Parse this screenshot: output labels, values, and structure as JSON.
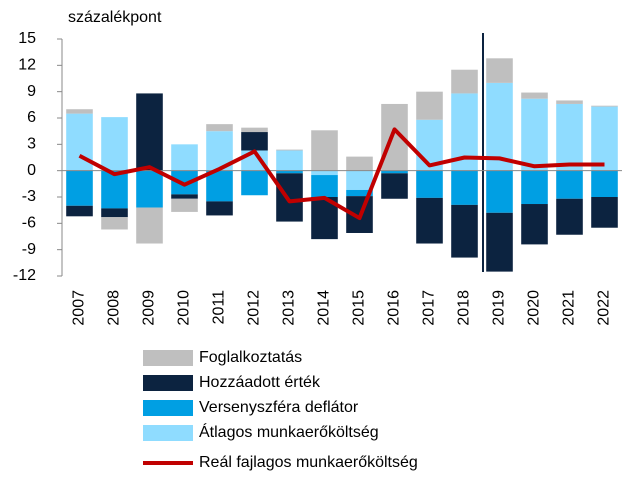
{
  "chart_data": {
    "type": "bar",
    "stacked": true,
    "y_label": "százalékpont",
    "categories": [
      "2007",
      "2008",
      "2009",
      "2010",
      "2011",
      "2012",
      "2013",
      "2014",
      "2015",
      "2016",
      "2017",
      "2018",
      "2019",
      "2020",
      "2021",
      "2022"
    ],
    "series": [
      {
        "name": "Foglalkoztatás",
        "color": "#bfbfbf",
        "values": [
          0.5,
          -1.4,
          -4.1,
          -1.5,
          0.8,
          0.5,
          0.1,
          4.6,
          1.6,
          7.6,
          3.2,
          2.7,
          2.8,
          0.7,
          0.4,
          0.1
        ]
      },
      {
        "name": "Hozzáadott érték",
        "color": "#0c2340",
        "values": [
          -1.2,
          -1.0,
          8.8,
          -0.5,
          -1.6,
          2.1,
          -5.5,
          -4.8,
          -4.2,
          -2.9,
          -5.2,
          -6.0,
          -6.7,
          -4.6,
          -4.1,
          -3.5
        ]
      },
      {
        "name": "Versenyszféra deflátor",
        "color": "#009fe3",
        "values": [
          -4.0,
          -4.3,
          -4.2,
          -2.7,
          -3.5,
          -2.8,
          -0.3,
          -2.5,
          -0.7,
          -0.3,
          -3.1,
          -3.9,
          -4.8,
          -3.8,
          -3.2,
          -3.0
        ]
      },
      {
        "name": "Átlagos munkaerőköltség",
        "color": "#8fdcff",
        "values": [
          6.5,
          6.1,
          0,
          3.0,
          4.5,
          2.3,
          2.3,
          -0.5,
          -2.2,
          0,
          5.8,
          8.8,
          10.0,
          8.2,
          7.6,
          7.3
        ]
      },
      {
        "name": "Reál fajlagos munkaerőköltség",
        "color": "#c00000",
        "type": "line",
        "values": [
          1.7,
          -0.4,
          0.4,
          -1.6,
          0.2,
          2.2,
          -3.5,
          -3.1,
          -5.4,
          4.7,
          0.6,
          1.5,
          1.4,
          0.5,
          0.7,
          0.7
        ]
      }
    ],
    "stack_order": [
      3,
      2,
      1,
      0
    ],
    "ylim": [
      -12,
      15
    ],
    "yticks": [
      -12,
      -9,
      -6,
      -3,
      0,
      3,
      6,
      9,
      12,
      15
    ]
  }
}
